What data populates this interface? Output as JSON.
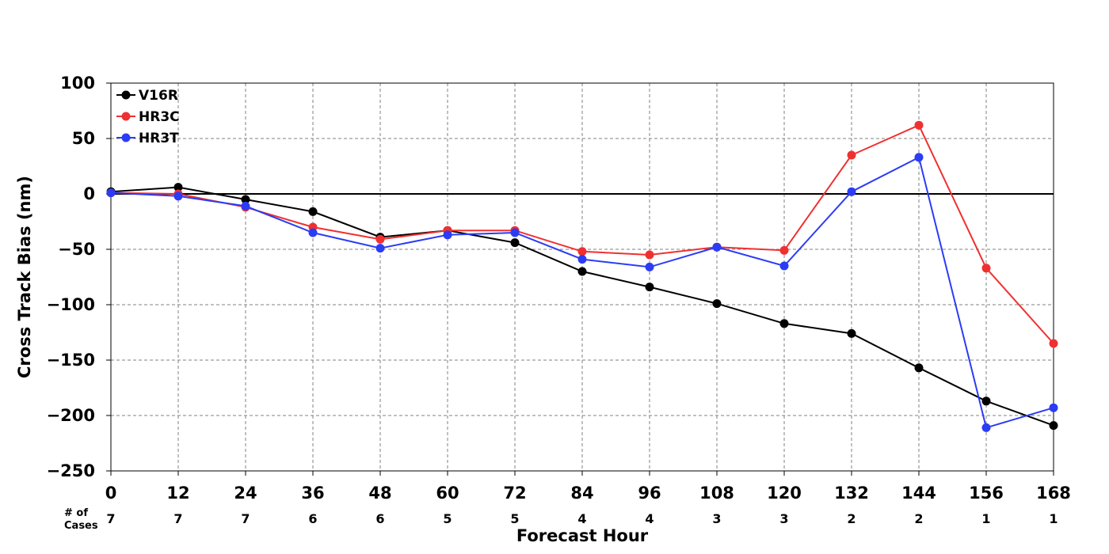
{
  "chart_data": {
    "type": "line",
    "xlabel": "Forecast Hour",
    "ylabel": "Cross Track Bias (nm)",
    "x": [
      0,
      12,
      24,
      36,
      48,
      60,
      72,
      84,
      96,
      108,
      120,
      132,
      144,
      156,
      168
    ],
    "xlim": [
      0,
      168
    ],
    "ylim": [
      -250,
      100
    ],
    "yticks": [
      100,
      50,
      0,
      -50,
      -100,
      -150,
      -200,
      -250
    ],
    "ytick_labels": [
      "100",
      "50",
      "0",
      "−50",
      "−100",
      "−150",
      "−200",
      "−250"
    ],
    "xtick_labels": [
      "0",
      "12",
      "24",
      "36",
      "48",
      "60",
      "72",
      "84",
      "96",
      "108",
      "120",
      "132",
      "144",
      "156",
      "168"
    ],
    "cases_label_line1": "# of",
    "cases_label_line2": "Cases",
    "cases": [
      "7",
      "7",
      "7",
      "6",
      "6",
      "5",
      "5",
      "4",
      "4",
      "3",
      "3",
      "2",
      "2",
      "1",
      "1"
    ],
    "grid": true,
    "legend_position": "top-left",
    "series": [
      {
        "name": "V16R",
        "color": "#000000",
        "values": [
          2,
          6,
          -5,
          -16,
          -39,
          -33,
          -44,
          -70,
          -84,
          -99,
          -117,
          -126,
          -157,
          -187,
          -209
        ]
      },
      {
        "name": "HR3C",
        "color": "#f03030",
        "values": [
          1,
          0,
          -12,
          -30,
          -41,
          -33,
          -33,
          -52,
          -55,
          -48,
          -51,
          35,
          62,
          -67,
          -135
        ]
      },
      {
        "name": "HR3T",
        "color": "#2b3cf5",
        "values": [
          1,
          -2,
          -11,
          -35,
          -49,
          -37,
          -35,
          -59,
          -66,
          -48,
          -65,
          2,
          33,
          -211,
          -193
        ]
      }
    ]
  }
}
